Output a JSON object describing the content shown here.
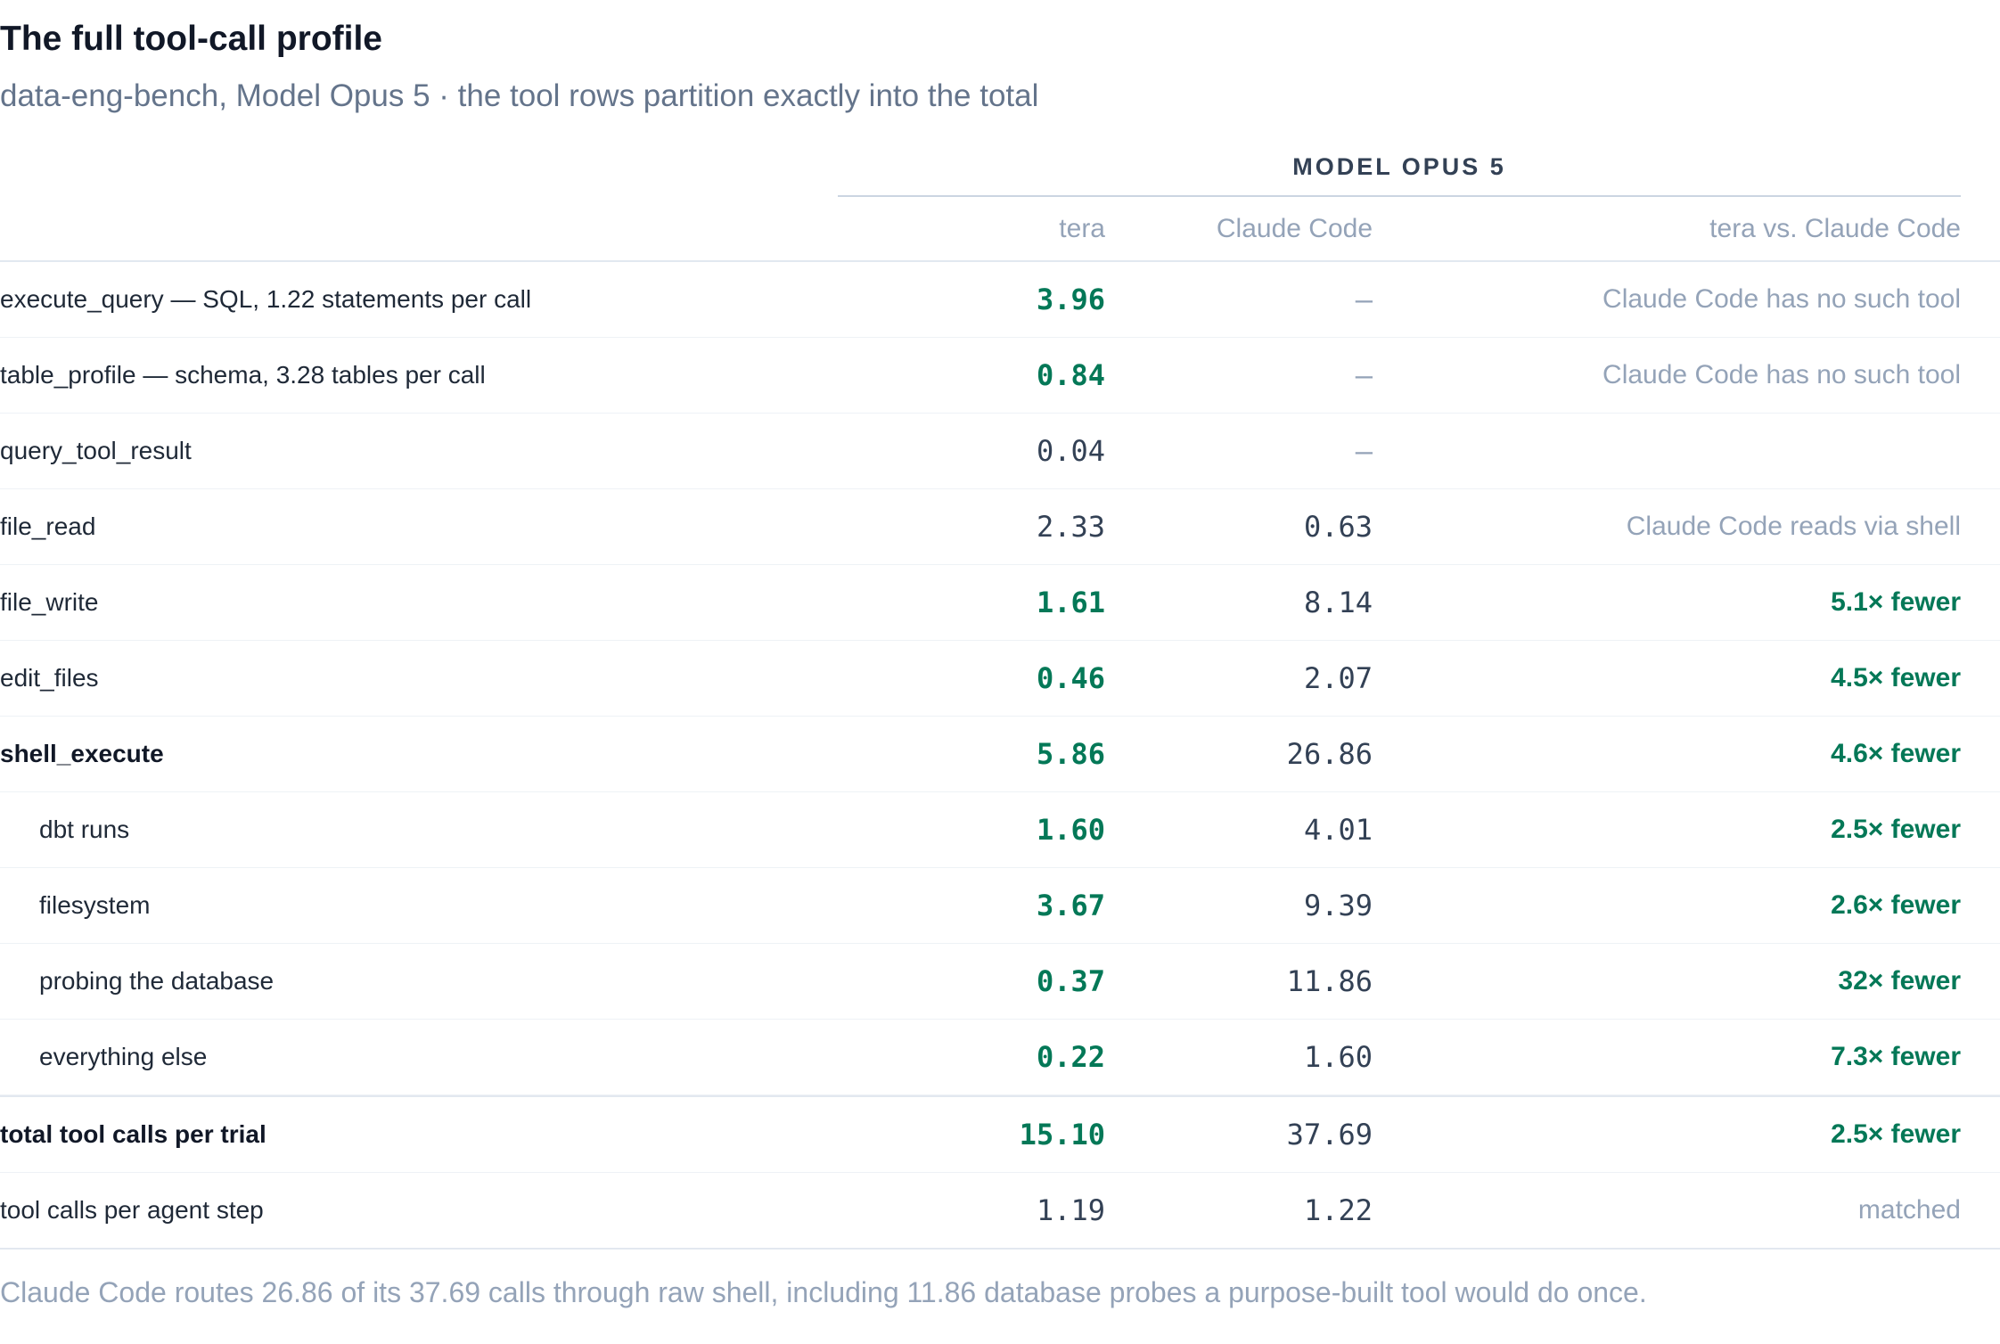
{
  "header": {
    "title": "The full tool-call profile",
    "subtitle": "data-eng-bench, Model Opus 5 · the tool rows partition exactly into the total"
  },
  "table": {
    "group_label": "MODEL OPUS 5",
    "columns": {
      "tera": "tera",
      "claude_code": "Claude Code",
      "comparison": "tera vs. Claude Code"
    },
    "rows": [
      {
        "label": "execute_query — SQL, 1.22 statements per call",
        "tera": "3.96",
        "claude_code": "—",
        "comparison": "Claude Code has no such tool"
      },
      {
        "label": "table_profile — schema, 3.28 tables per call",
        "tera": "0.84",
        "claude_code": "—",
        "comparison": "Claude Code has no such tool"
      },
      {
        "label": "query_tool_result",
        "tera": "0.04",
        "claude_code": "—",
        "comparison": ""
      },
      {
        "label": "file_read",
        "tera": "2.33",
        "claude_code": "0.63",
        "comparison": "Claude Code reads via shell"
      },
      {
        "label": "file_write",
        "tera": "1.61",
        "claude_code": "8.14",
        "comparison": "5.1× fewer"
      },
      {
        "label": "edit_files",
        "tera": "0.46",
        "claude_code": "2.07",
        "comparison": "4.5× fewer"
      },
      {
        "label": "shell_execute",
        "tera": "5.86",
        "claude_code": "26.86",
        "comparison": "4.6× fewer"
      },
      {
        "label": "dbt runs",
        "tera": "1.60",
        "claude_code": "4.01",
        "comparison": "2.5× fewer"
      },
      {
        "label": "filesystem",
        "tera": "3.67",
        "claude_code": "9.39",
        "comparison": "2.6× fewer"
      },
      {
        "label": "probing the database",
        "tera": "0.37",
        "claude_code": "11.86",
        "comparison": "32× fewer"
      },
      {
        "label": "everything else",
        "tera": "0.22",
        "claude_code": "1.60",
        "comparison": "7.3× fewer"
      },
      {
        "label": "total tool calls per trial",
        "tera": "15.10",
        "claude_code": "37.69",
        "comparison": "2.5× fewer"
      },
      {
        "label": "tool calls per agent step",
        "tera": "1.19",
        "claude_code": "1.22",
        "comparison": "matched"
      }
    ]
  },
  "footnote": "Claude Code routes 26.86 of its 37.69 calls through raw shell, including 11.86 database probes a purpose-built tool would do once.",
  "colors": {
    "highlight_green": "#047857",
    "muted_text": "#94a3b8",
    "heading": "#111827"
  }
}
